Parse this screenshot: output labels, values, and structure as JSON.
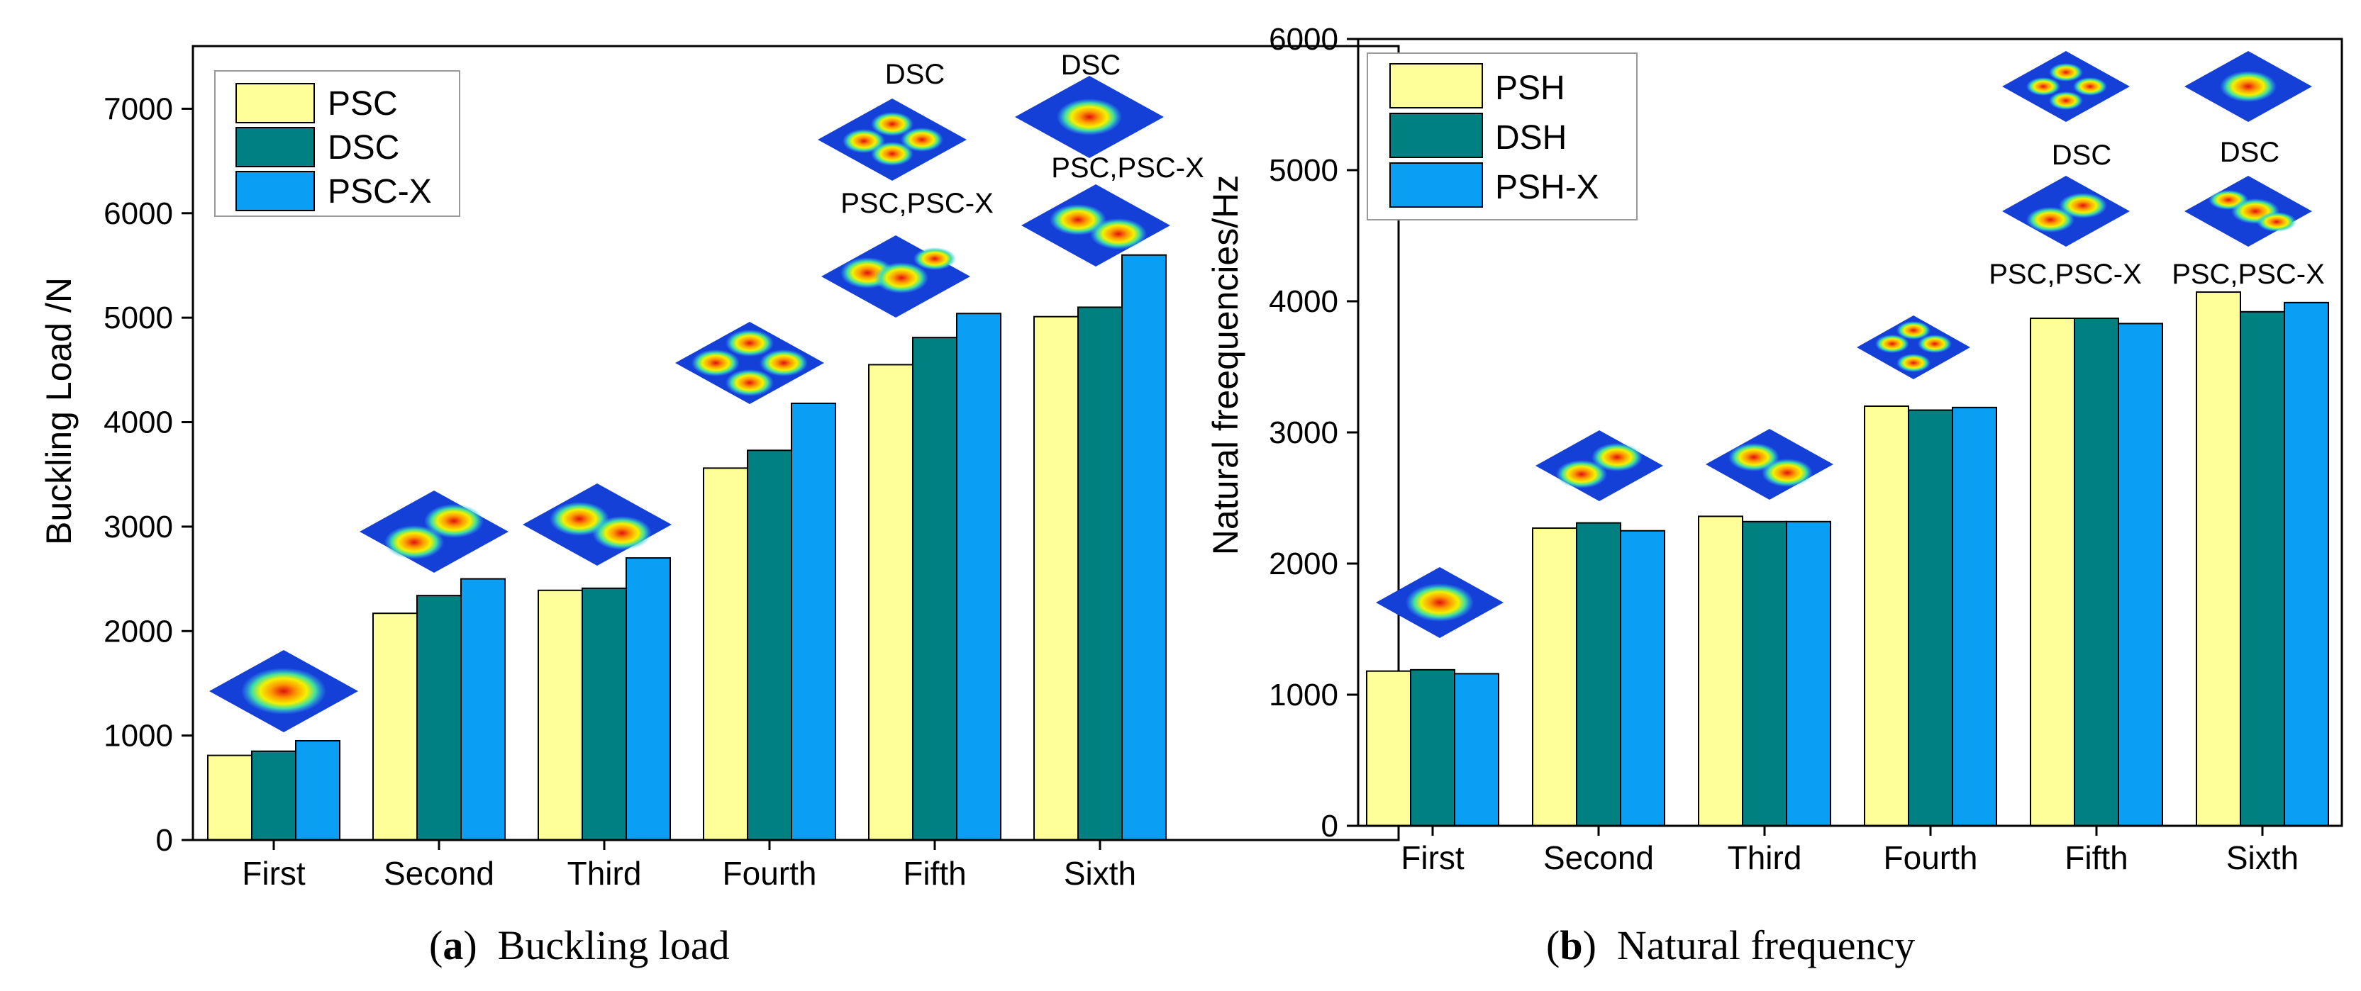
{
  "chart_data": [
    {
      "id": "a",
      "type": "bar",
      "title": "",
      "xlabel": "",
      "ylabel": "Buckling Load /N",
      "ylim": [
        0,
        7600
      ],
      "yticks": [
        0,
        1000,
        2000,
        3000,
        4000,
        5000,
        6000,
        7000
      ],
      "categories": [
        "First",
        "Second",
        "Third",
        "Fourth",
        "Fifth",
        "Sixth"
      ],
      "series": [
        {
          "name": "PSC",
          "color": "#FFFF99",
          "values": [
            810,
            2170,
            2390,
            3560,
            4550,
            5010
          ]
        },
        {
          "name": "DSC",
          "color": "#008080",
          "values": [
            850,
            2340,
            2410,
            3730,
            4810,
            5100
          ]
        },
        {
          "name": "PSC-X",
          "color": "#0A9FF2",
          "values": [
            950,
            2500,
            2700,
            4180,
            5040,
            5600
          ]
        }
      ],
      "legend": "top-left",
      "annotations": [
        "DSC",
        "DSC",
        "PSC,PSC-X",
        "PSC,PSC-X"
      ],
      "caption_letter": "a",
      "caption_text": "Buckling load"
    },
    {
      "id": "b",
      "type": "bar",
      "title": "",
      "xlabel": "",
      "ylabel": "Natural freequencies/Hz",
      "ylim": [
        0,
        6000
      ],
      "yticks": [
        0,
        1000,
        2000,
        3000,
        4000,
        5000,
        6000
      ],
      "categories": [
        "First",
        "Second",
        "Third",
        "Fourth",
        "Fifth",
        "Sixth"
      ],
      "series": [
        {
          "name": "PSH",
          "color": "#FFFF99",
          "values": [
            1180,
            2270,
            2360,
            3200,
            3870,
            4070
          ]
        },
        {
          "name": "DSH",
          "color": "#008080",
          "values": [
            1190,
            2310,
            2320,
            3170,
            3870,
            3920
          ]
        },
        {
          "name": "PSH-X",
          "color": "#0A9FF2",
          "values": [
            1160,
            2250,
            2320,
            3190,
            3830,
            3990
          ]
        }
      ],
      "legend": "top-left",
      "annotations": [
        "DSC",
        "DSC",
        "PSC,PSC-X",
        "PSC,PSC-X"
      ],
      "caption_letter": "b",
      "caption_text": "Natural frequency"
    }
  ]
}
